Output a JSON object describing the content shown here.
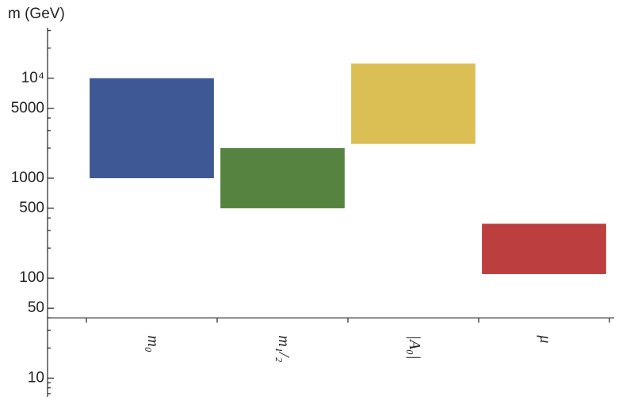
{
  "chart_data": {
    "type": "range-bar",
    "y_label": "m (GeV)",
    "categories": [
      "m₀",
      "m₁/₂",
      "|A₀|",
      "μ"
    ],
    "values": [
      [
        1000,
        10000
      ],
      [
        500,
        2000
      ],
      [
        2200,
        14000
      ],
      [
        110,
        350
      ]
    ],
    "colors": [
      "#3e5795",
      "#568440",
      "#dbbf55",
      "#bd3e3e"
    ],
    "log_scale": true,
    "ylim": [
      6.5,
      32000
    ],
    "x_axis_at": 40,
    "yticks": [
      10,
      50,
      100,
      500,
      1000,
      5000,
      {
        "value": 10000,
        "label": "10⁴"
      }
    ],
    "yminor": [
      7,
      8,
      9,
      20,
      30,
      40,
      200,
      300,
      400,
      2000,
      3000,
      4000,
      20000,
      30000
    ]
  }
}
